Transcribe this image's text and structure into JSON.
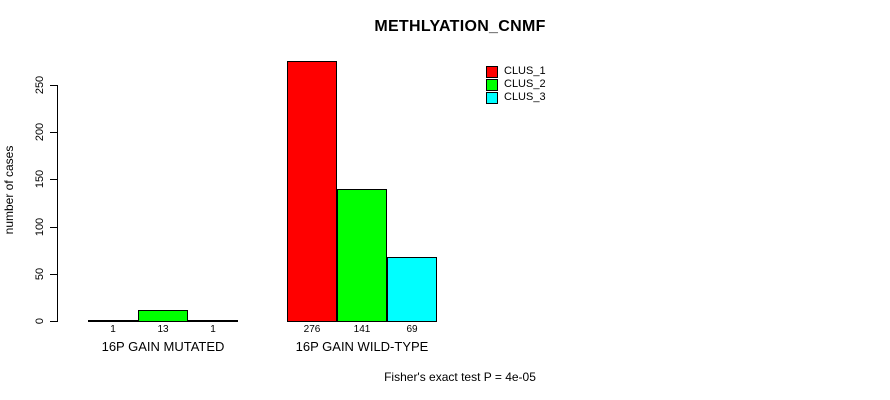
{
  "chart_data": {
    "type": "bar",
    "title": "METHLYATION_CNMF",
    "xlabel": "",
    "ylabel": "number of cases",
    "categories": [
      "16P GAIN MUTATED",
      "16P GAIN WILD-TYPE"
    ],
    "series": [
      {
        "name": "CLUS_1",
        "color": "#ff0000",
        "values": [
          1,
          276
        ]
      },
      {
        "name": "CLUS_2",
        "color": "#00ff00",
        "values": [
          13,
          141
        ]
      },
      {
        "name": "CLUS_3",
        "color": "#00ffff",
        "values": [
          1,
          69
        ]
      }
    ],
    "bar_value_labels": [
      [
        "1",
        "13",
        "1"
      ],
      [
        "276",
        "141",
        "69"
      ]
    ],
    "ylim": [
      0,
      250
    ],
    "yticks": [
      0,
      50,
      100,
      150,
      200,
      250
    ],
    "grid": false,
    "legend_position": "top-right",
    "annotation": "Fisher's exact test P = 4e-05",
    "background_color": "#ffffff",
    "axis_color": "#000000"
  }
}
